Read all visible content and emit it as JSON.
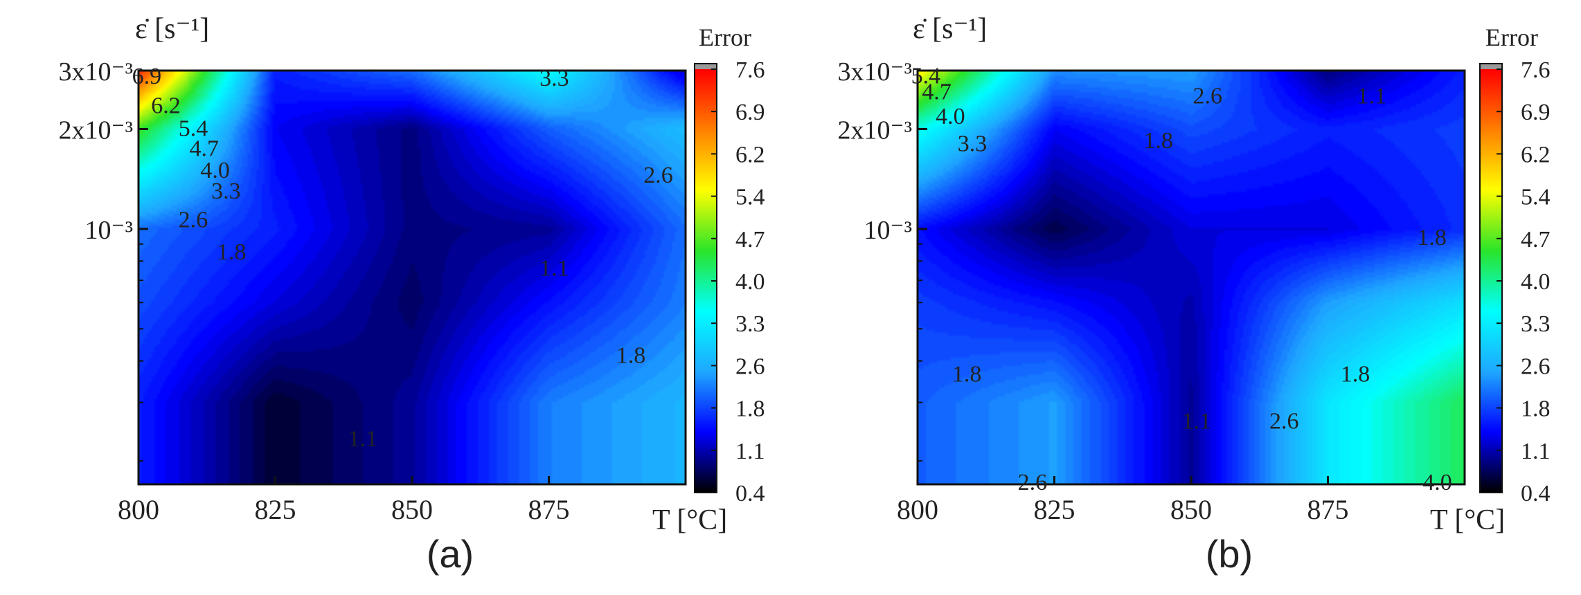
{
  "chart_data": [
    {
      "type": "heatmap",
      "panel_label": "(a)",
      "xlabel": "T [°C]",
      "ylabel": "ε̇ [s⁻¹]",
      "x_ticks": [
        "800",
        "825",
        "850",
        "875"
      ],
      "x": [
        800,
        825,
        850,
        875,
        900
      ],
      "y_scale": "log",
      "y_ticks": [
        {
          "value": 0.001,
          "label": "10⁻³"
        },
        {
          "value": 0.002,
          "label": "2x10⁻³"
        },
        {
          "value": 0.003,
          "label": "3x10⁻³"
        }
      ],
      "y": [
        0.0003,
        0.0006,
        0.001,
        0.002,
        0.003
      ],
      "z": [
        [
          1.6,
          0.6,
          1.0,
          2.2,
          2.6
        ],
        [
          1.9,
          1.3,
          0.8,
          1.5,
          2.2
        ],
        [
          2.1,
          1.6,
          0.9,
          1.0,
          2.1
        ],
        [
          4.6,
          1.4,
          0.9,
          2.0,
          2.7
        ],
        [
          7.3,
          1.6,
          2.1,
          3.5,
          1.2
        ]
      ],
      "contour_labels": [
        {
          "text": "6.9",
          "x": 801.5,
          "y": 0.00284
        },
        {
          "text": "6.2",
          "x": 805,
          "y": 0.00232
        },
        {
          "text": "5.4",
          "x": 810,
          "y": 0.00198
        },
        {
          "text": "4.7",
          "x": 812,
          "y": 0.00172
        },
        {
          "text": "4.0",
          "x": 814,
          "y": 0.00148
        },
        {
          "text": "3.3",
          "x": 816,
          "y": 0.00128
        },
        {
          "text": "2.6",
          "x": 810,
          "y": 0.00105
        },
        {
          "text": "1.8",
          "x": 817,
          "y": 0.00084
        },
        {
          "text": "1.1",
          "x": 876,
          "y": 0.00075
        },
        {
          "text": "1.8",
          "x": 890,
          "y": 0.00041
        },
        {
          "text": "1.1",
          "x": 841,
          "y": 0.00023
        },
        {
          "text": "3.3",
          "x": 876,
          "y": 0.0028
        },
        {
          "text": "2.6",
          "x": 895,
          "y": 0.00143
        }
      ],
      "colorbar": {
        "title": "Error",
        "ticks": [
          "7.6",
          "6.9",
          "6.2",
          "5.4",
          "4.7",
          "4.0",
          "3.3",
          "2.6",
          "1.8",
          "1.1",
          "0.4"
        ]
      }
    },
    {
      "type": "heatmap",
      "panel_label": "(b)",
      "xlabel": "T [°C]",
      "ylabel": "ε̇ [s⁻¹]",
      "x_ticks": [
        "800",
        "825",
        "850",
        "875"
      ],
      "x": [
        800,
        825,
        850,
        875,
        900
      ],
      "y_scale": "log",
      "y_ticks": [
        {
          "value": 0.001,
          "label": "10⁻³"
        },
        {
          "value": 0.002,
          "label": "2x10⁻³"
        },
        {
          "value": 0.003,
          "label": "3x10⁻³"
        }
      ],
      "y": [
        0.0003,
        0.0006,
        0.001,
        0.002,
        0.003
      ],
      "z": [
        [
          2.0,
          2.4,
          1.0,
          3.2,
          4.3
        ],
        [
          1.8,
          1.5,
          1.1,
          2.4,
          3.1
        ],
        [
          1.5,
          0.7,
          1.3,
          1.3,
          1.7
        ],
        [
          3.6,
          1.4,
          1.9,
          1.6,
          1.8
        ],
        [
          5.7,
          2.3,
          2.4,
          0.9,
          1.6
        ]
      ],
      "contour_labels": [
        {
          "text": "5.4",
          "x": 801.5,
          "y": 0.00285
        },
        {
          "text": "4.7",
          "x": 803.5,
          "y": 0.00255
        },
        {
          "text": "4.0",
          "x": 806,
          "y": 0.00215
        },
        {
          "text": "3.3",
          "x": 810,
          "y": 0.00178
        },
        {
          "text": "2.6",
          "x": 853,
          "y": 0.00248
        },
        {
          "text": "1.8",
          "x": 844,
          "y": 0.00182
        },
        {
          "text": "1.1",
          "x": 883,
          "y": 0.00248
        },
        {
          "text": "1.8",
          "x": 894,
          "y": 0.00093
        },
        {
          "text": "1.8",
          "x": 809,
          "y": 0.00036
        },
        {
          "text": "1.1",
          "x": 851,
          "y": 0.00026
        },
        {
          "text": "2.6",
          "x": 867,
          "y": 0.00026
        },
        {
          "text": "1.8",
          "x": 880,
          "y": 0.00036
        },
        {
          "text": "2.6",
          "x": 821,
          "y": 0.00017
        },
        {
          "text": "4.0",
          "x": 895,
          "y": 0.00017
        }
      ],
      "colorbar": {
        "title": "Error",
        "ticks": [
          "7.6",
          "6.9",
          "6.2",
          "5.4",
          "4.7",
          "4.0",
          "3.3",
          "2.6",
          "1.8",
          "1.1",
          "0.4"
        ]
      }
    }
  ],
  "colormap": [
    "#000000",
    "#0000ff",
    "#1fa8ff",
    "#00ffff",
    "#2ae52a",
    "#ffff00",
    "#ff7f00",
    "#ff0000",
    "#aaaaaa"
  ],
  "z_range": [
    0.4,
    7.6
  ]
}
